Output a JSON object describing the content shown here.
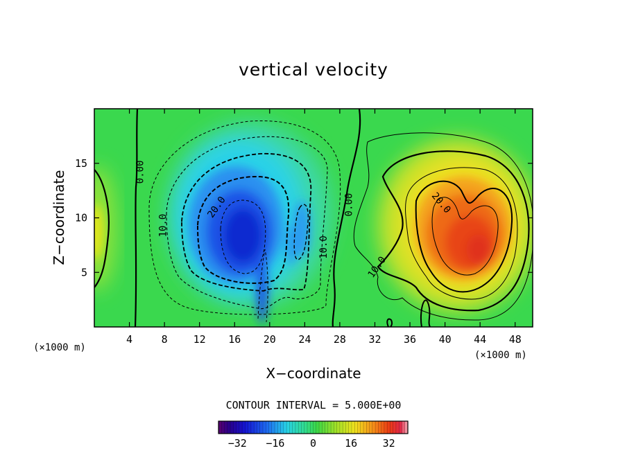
{
  "chart_data": {
    "type": "heatmap",
    "title": "vertical velocity",
    "xlabel": "X−coordinate",
    "ylabel": "Z−coordinate",
    "x_unit": "(×1000 m)",
    "z_unit": "(×1000 m)",
    "xlim": [
      0,
      50
    ],
    "ylim": [
      0,
      20
    ],
    "x_ticks": [
      4,
      8,
      12,
      16,
      20,
      24,
      28,
      32,
      36,
      40,
      44,
      48
    ],
    "x_tick_labels": [
      "4",
      "8",
      "12",
      "16",
      "20",
      "24",
      "28",
      "32",
      "36",
      "40",
      "44",
      "48"
    ],
    "y_ticks": [
      5,
      10,
      15
    ],
    "y_tick_labels": [
      "5",
      "10",
      "15"
    ],
    "contour_interval_text": "CONTOUR INTERVAL = 5.000E+00",
    "contour_interval": 5.0,
    "colorbar": {
      "range": [
        -40,
        40
      ],
      "ticks": [
        -32,
        -16,
        0,
        16,
        32
      ],
      "tick_labels": [
        "−32",
        "−16",
        "0",
        "16",
        "32"
      ]
    },
    "contour_labels": [
      {
        "text": "0.00",
        "x": 5.2,
        "z": 14.2,
        "rotation": -90
      },
      {
        "text": "10.0",
        "x": 7.8,
        "z": 9.3,
        "rotation": -90
      },
      {
        "text": "20.0",
        "x": 13.9,
        "z": 11.0,
        "rotation": -55
      },
      {
        "text": "0.00",
        "x": 29.0,
        "z": 11.2,
        "rotation": -90
      },
      {
        "text": "10.0",
        "x": 26.1,
        "z": 7.3,
        "rotation": -90
      },
      {
        "text": "10.0",
        "x": 32.2,
        "z": 5.5,
        "rotation": -55
      },
      {
        "text": "20.0",
        "x": 39.6,
        "z": 11.4,
        "rotation": 50
      }
    ],
    "features": [
      {
        "name": "downdraft",
        "x_center": 17.5,
        "z_center": 8.0,
        "min_value": -36
      },
      {
        "name": "updraft",
        "x_center": 42.5,
        "z_center": 7.0,
        "max_value": 34
      },
      {
        "name": "weak updraft",
        "x_center": 0.5,
        "z_center": 9.0,
        "max_value": 10
      }
    ]
  }
}
